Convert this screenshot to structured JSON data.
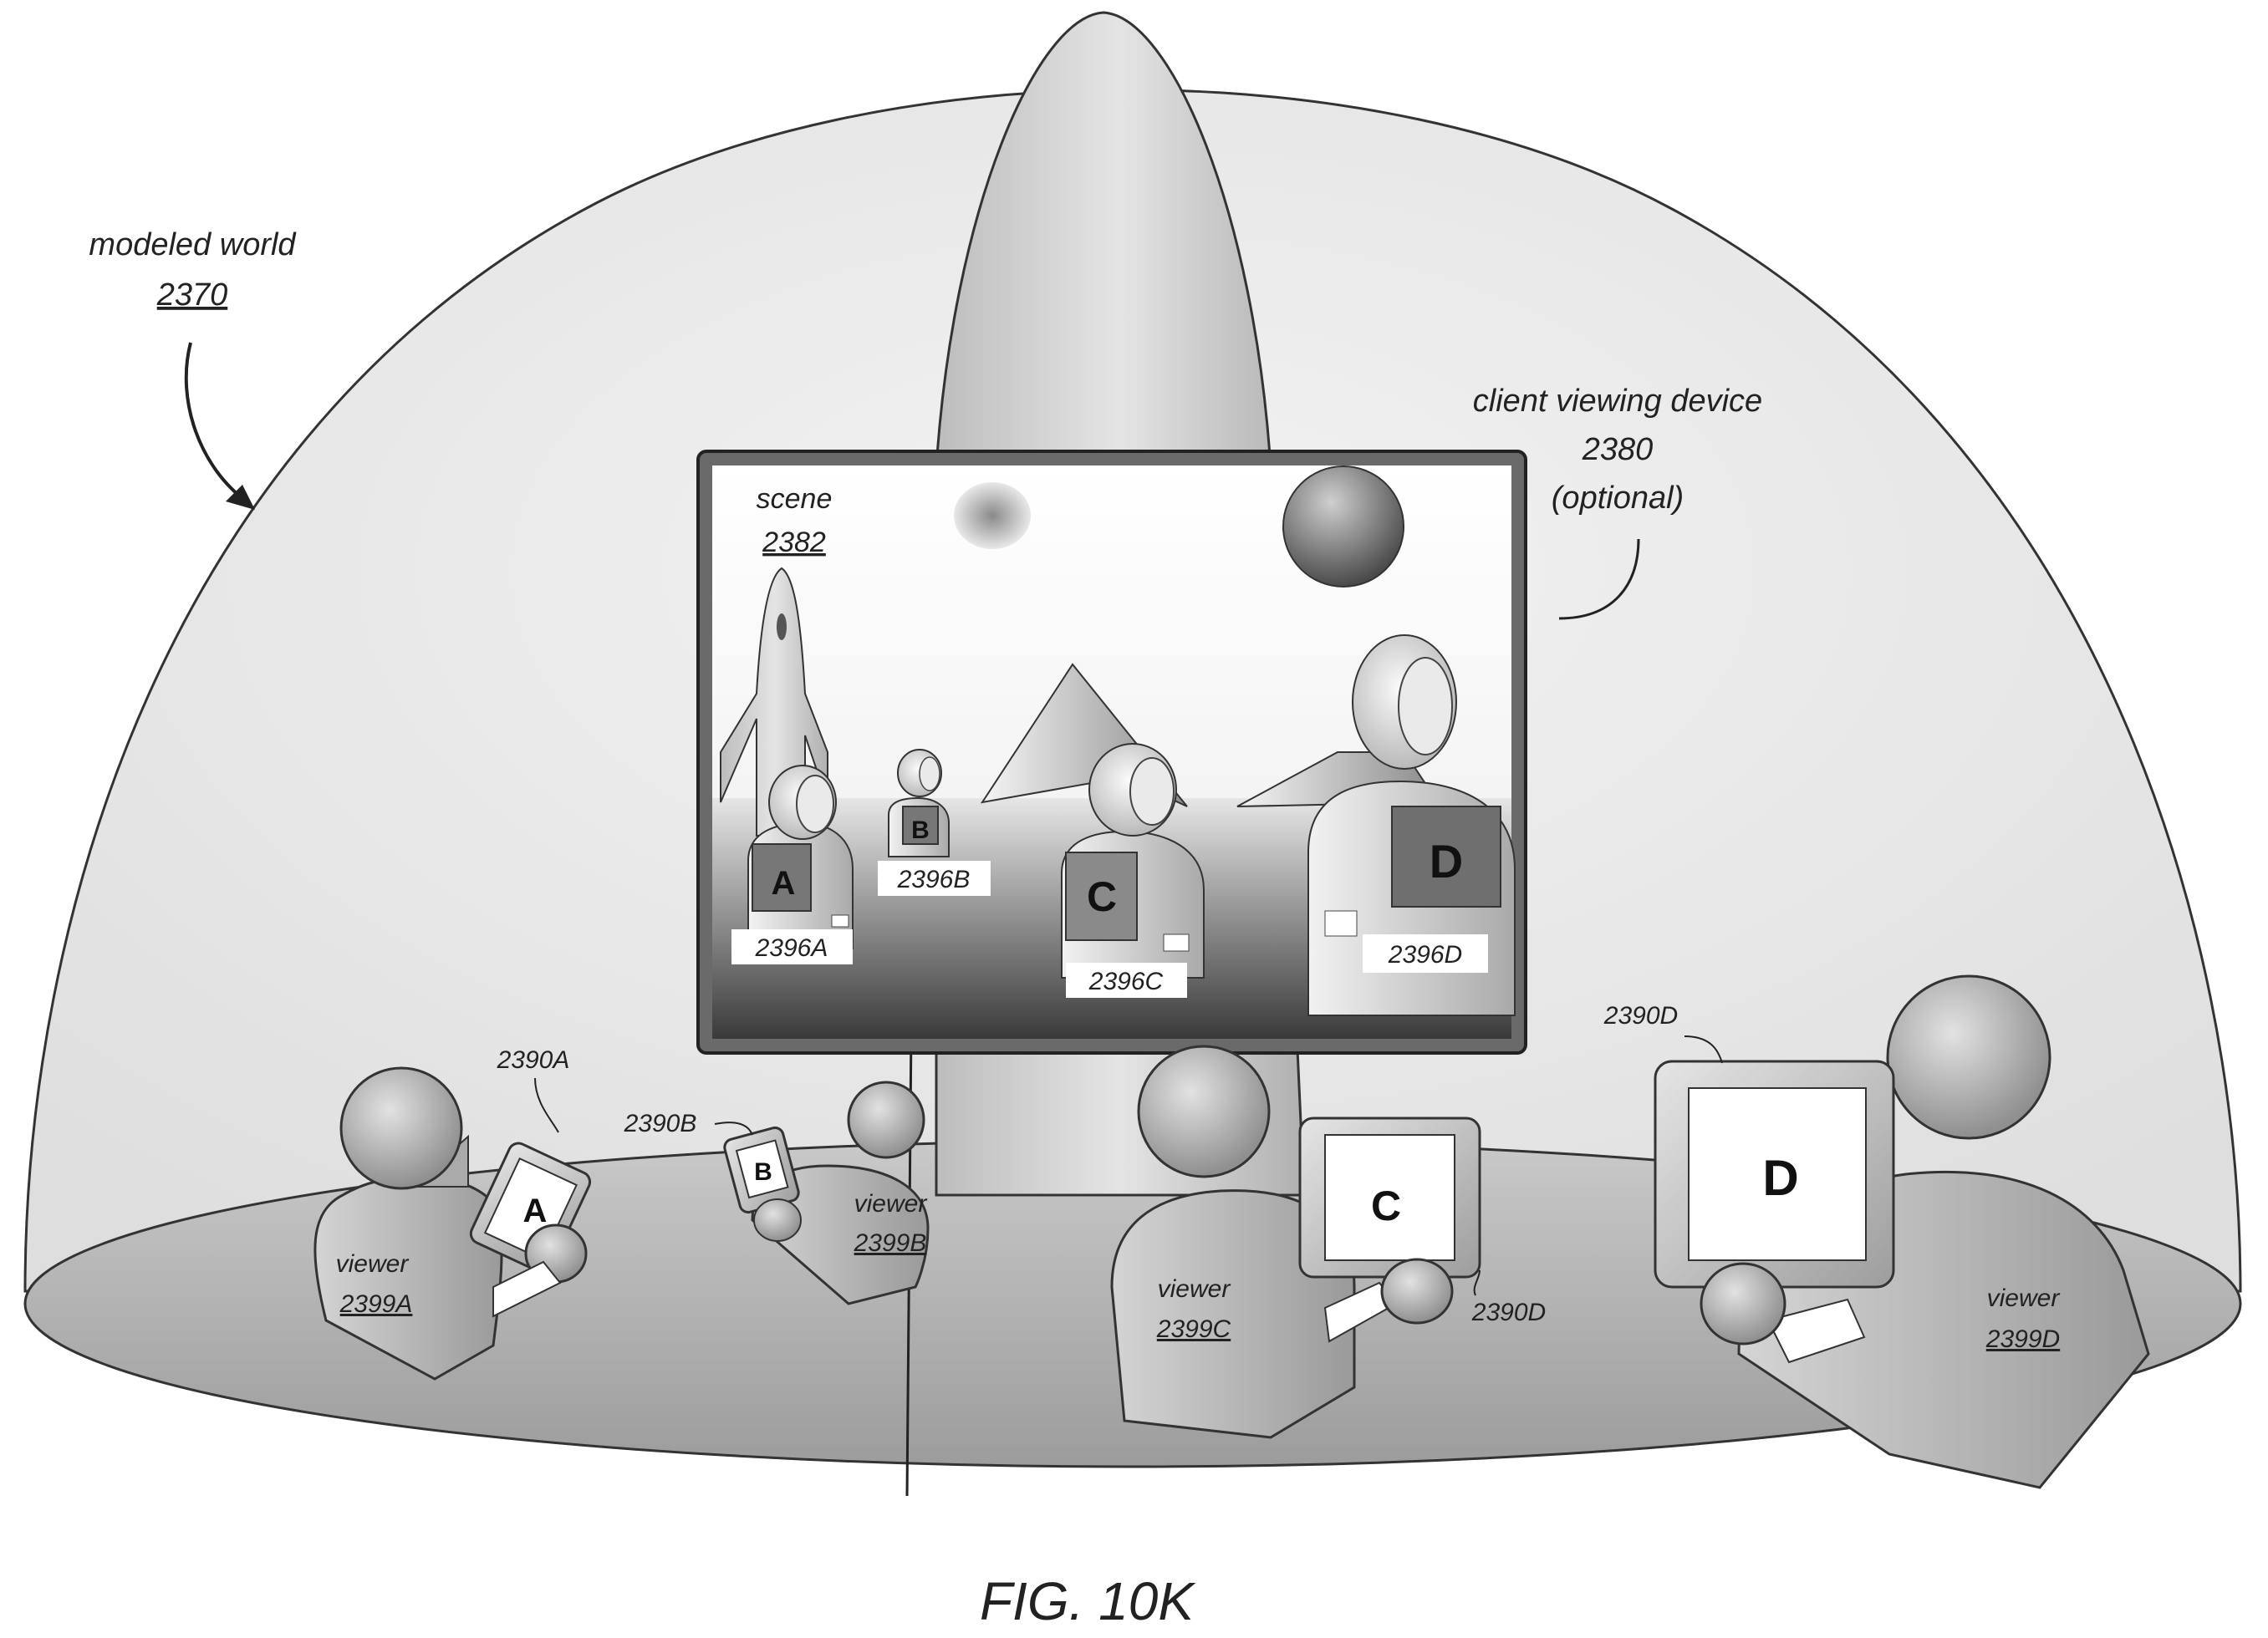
{
  "figure_caption": "FIG. 10K",
  "modeled_world": {
    "label": "modeled world",
    "ref": "2370"
  },
  "client_device": {
    "label": "client viewing device",
    "ref": "2380",
    "note": "(optional)"
  },
  "scene": {
    "label": "scene",
    "ref": "2382"
  },
  "avatars": [
    {
      "letter": "A",
      "ref": "2396A"
    },
    {
      "letter": "B",
      "ref": "2396B"
    },
    {
      "letter": "C",
      "ref": "2396C"
    },
    {
      "letter": "D",
      "ref": "2396D"
    }
  ],
  "viewers": [
    {
      "label": "viewer",
      "ref": "2399A",
      "device_ref": "2390A",
      "screen_letter": "A"
    },
    {
      "label": "viewer",
      "ref": "2399B",
      "device_ref": "2390B",
      "screen_letter": "B"
    },
    {
      "label": "viewer",
      "ref": "2399C",
      "device_ref": "2390D",
      "screen_letter": "C"
    },
    {
      "label": "viewer",
      "ref": "2399D",
      "device_ref": "2390D",
      "screen_letter": "D"
    }
  ]
}
